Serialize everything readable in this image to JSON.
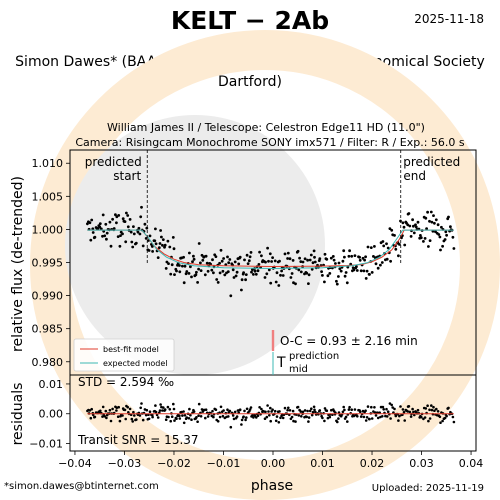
{
  "page": {
    "title": "KELT − 2Ab",
    "date": "2025-11-18",
    "author_line": "Simon Dawes* (BAA & Crayford Manor House Astronomical Society Dartford)",
    "email": "*simon.dawes@btinternet.com",
    "uploaded": "Uploaded: 2025-11-19",
    "watermark_color": "#fdebd3",
    "grey_color": "#ececec"
  },
  "chart_data": {
    "type": "scatter",
    "title": "William James II / Telescope: Celestron Edge11 HD (11.0\")",
    "subtitle": "Camera: Risingcam Monochrome SONY imx571 / Filter: R / Exp.: 56.0 s",
    "xlabel": "phase",
    "ylabel": "relative flux (de-trended)",
    "residual_ylabel": "residuals",
    "xlim": [
      -0.041,
      0.041
    ],
    "ylim": [
      0.978,
      1.012
    ],
    "residual_ylim": [
      -0.0125,
      0.013
    ],
    "xticks": [
      -0.04,
      -0.03,
      -0.02,
      -0.01,
      0.0,
      0.01,
      0.02,
      0.03,
      0.04
    ],
    "xtick_labels": [
      "−0.04",
      "−0.03",
      "−0.02",
      "−0.01",
      "0.00",
      "0.01",
      "0.02",
      "0.03",
      "0.04"
    ],
    "yticks": [
      0.98,
      0.985,
      0.99,
      0.995,
      1.0,
      1.005,
      1.01
    ],
    "ytick_labels": [
      "0.980",
      "0.985",
      "0.990",
      "0.995",
      "1.000",
      "1.005",
      "1.010"
    ],
    "residual_yticks": [
      -0.01,
      0.0,
      0.01
    ],
    "residual_ytick_labels": [
      "−0.01",
      "0.00",
      "0.01"
    ],
    "predicted_start": -0.0254,
    "predicted_end": 0.0258,
    "predicted_start_label": "predicted start",
    "predicted_end_label": "predicted end",
    "prediction_mid": 0.0,
    "prediction_label": "prediction",
    "prediction_symbol": "T",
    "prediction_subscript": "mid",
    "oc_text": "O-C = 0.93 ± 2.16 min",
    "oc_min": 0.93,
    "oc_err_min": 2.16,
    "std_text": "STD = 2.594 ‰",
    "snr_text": "Transit SNR = 15.37",
    "grid": false,
    "legend_position": "bottom-left",
    "series": [
      {
        "name": "best-fit model",
        "color": "#e03c2c",
        "x": [
          -0.0375,
          -0.0265,
          -0.0255,
          -0.024,
          -0.022,
          -0.02,
          -0.018,
          -0.015,
          -0.01,
          0.0,
          0.01,
          0.015,
          0.018,
          0.02,
          0.022,
          0.024,
          0.0255,
          0.0265,
          0.0365
        ],
        "y": [
          0.9999,
          0.9999,
          0.999,
          0.9975,
          0.9963,
          0.9955,
          0.995,
          0.99465,
          0.9945,
          0.9944,
          0.99445,
          0.99455,
          0.9947,
          0.9951,
          0.9958,
          0.9969,
          0.9985,
          0.9999,
          0.9999
        ]
      },
      {
        "name": "expected model",
        "color": "#3cb8b4",
        "x": [
          -0.0375,
          -0.0265,
          -0.0252,
          -0.0235,
          -0.0215,
          -0.019,
          -0.016,
          -0.01,
          0.0,
          0.01,
          0.016,
          0.019,
          0.0215,
          0.0235,
          0.0252,
          0.0262,
          0.0365
        ],
        "y": [
          0.9999,
          0.9999,
          0.9988,
          0.997,
          0.9958,
          0.99495,
          0.9945,
          0.9942,
          0.9941,
          0.9942,
          0.9945,
          0.99495,
          0.9958,
          0.997,
          0.9988,
          0.9999,
          0.9999
        ]
      }
    ],
    "observations": {
      "x_start": -0.0375,
      "x_end": 0.0365,
      "count": 420,
      "point_color": "#000000",
      "out_of_transit_level": 0.9999,
      "in_transit_level": 0.9944,
      "scatter": 0.0026
    }
  }
}
